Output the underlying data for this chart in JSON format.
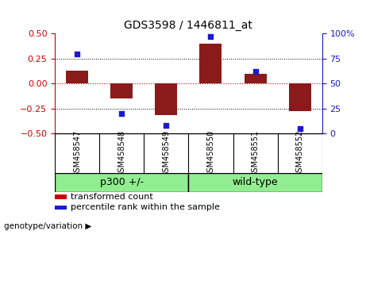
{
  "title": "GDS3598 / 1446811_at",
  "samples": [
    "GSM458547",
    "GSM458548",
    "GSM458549",
    "GSM458550",
    "GSM458551",
    "GSM458552"
  ],
  "transformed_count": [
    0.13,
    -0.15,
    -0.32,
    0.4,
    0.1,
    -0.28
  ],
  "percentile_rank": [
    80,
    20,
    8,
    97,
    62,
    5
  ],
  "ylim_left": [
    -0.5,
    0.5
  ],
  "ylim_right": [
    0,
    100
  ],
  "yticks_left": [
    -0.5,
    -0.25,
    0,
    0.25,
    0.5
  ],
  "yticks_right": [
    0,
    25,
    50,
    75,
    100
  ],
  "hlines_dotted": [
    0.25,
    -0.25
  ],
  "hline_zero": 0,
  "bar_color": "#8B1A1A",
  "dot_color": "#1A1ACD",
  "zero_line_color": "#CC0000",
  "groups": [
    {
      "label": "p300 +/-",
      "n": 3,
      "color": "#90EE90"
    },
    {
      "label": "wild-type",
      "n": 3,
      "color": "#90EE90"
    }
  ],
  "group_label": "genotype/variation",
  "legend_items": [
    {
      "label": "transformed count",
      "color": "#CC0000"
    },
    {
      "label": "percentile rank within the sample",
      "color": "#1A1ACD"
    }
  ],
  "background_color": "#FFFFFF",
  "plot_bg": "#FFFFFF",
  "sample_label_bg": "#C8C8C8",
  "tick_label_color_left": "#CC0000",
  "tick_label_color_right": "#1A1ACD",
  "bar_width": 0.5,
  "title_fontsize": 10,
  "axis_fontsize": 8,
  "sample_fontsize": 7,
  "group_fontsize": 9,
  "legend_fontsize": 8
}
